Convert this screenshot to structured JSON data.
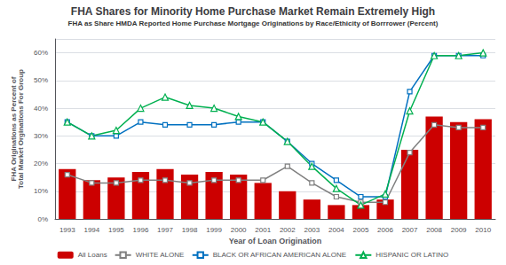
{
  "chart_data": {
    "type": "bar",
    "title": "FHA Shares for Minority Home Purchase Market Remain Extremely High",
    "subtitle": "FHA as Share HMDA Reported Home Purchase Mortgage Originations by Race/Ethicity of Borrrower (Percent)",
    "xlabel": "Year of Loan Origination",
    "ylabel": "FHA Originations as Percent of\nTotal Market Orginations For Group",
    "categories": [
      "1993",
      "1994",
      "1995",
      "1996",
      "1997",
      "1998",
      "1999",
      "2000",
      "2001",
      "2002",
      "2003",
      "2004",
      "2005",
      "2006",
      "2007",
      "2008",
      "2009",
      "2010"
    ],
    "series": [
      {
        "name": "All Loans",
        "type": "bar",
        "color": "#cc0000",
        "values": [
          18,
          14,
          15,
          17,
          18,
          16,
          17,
          16,
          13,
          10,
          7,
          5,
          5,
          7,
          25,
          37,
          35,
          36
        ]
      },
      {
        "name": "WHITE ALONE",
        "type": "line",
        "color": "#808080",
        "marker": "square",
        "values": [
          16,
          13,
          13,
          14,
          14,
          13,
          14,
          14,
          14,
          19,
          13,
          8,
          6,
          6,
          24,
          34,
          33,
          33
        ]
      },
      {
        "name": "BLACK OR AFRICAN AMERICAN ALONE",
        "type": "line",
        "color": "#0070c0",
        "marker": "square",
        "values": [
          35,
          30,
          30,
          35,
          34,
          34,
          34,
          35,
          35,
          28,
          20,
          14,
          8,
          8,
          46,
          59,
          59,
          59
        ]
      },
      {
        "name": "HISPANIC OR LATINO",
        "type": "line",
        "color": "#00b050",
        "marker": "triangle",
        "values": [
          35,
          30,
          32,
          40,
          44,
          41,
          40,
          37,
          35,
          28,
          19,
          11,
          5,
          9,
          39,
          59,
          59,
          60
        ]
      }
    ],
    "ylim": [
      0,
      65
    ],
    "yticks": [
      {
        "value": 0,
        "label": "0%"
      },
      {
        "value": 10,
        "label": "10%"
      },
      {
        "value": 20,
        "label": "20%"
      },
      {
        "value": 30,
        "label": "30%"
      },
      {
        "value": 40,
        "label": "40%"
      },
      {
        "value": 50,
        "label": "50%"
      },
      {
        "value": 60,
        "label": "60%"
      }
    ],
    "grid": true,
    "legend": "bottom"
  }
}
